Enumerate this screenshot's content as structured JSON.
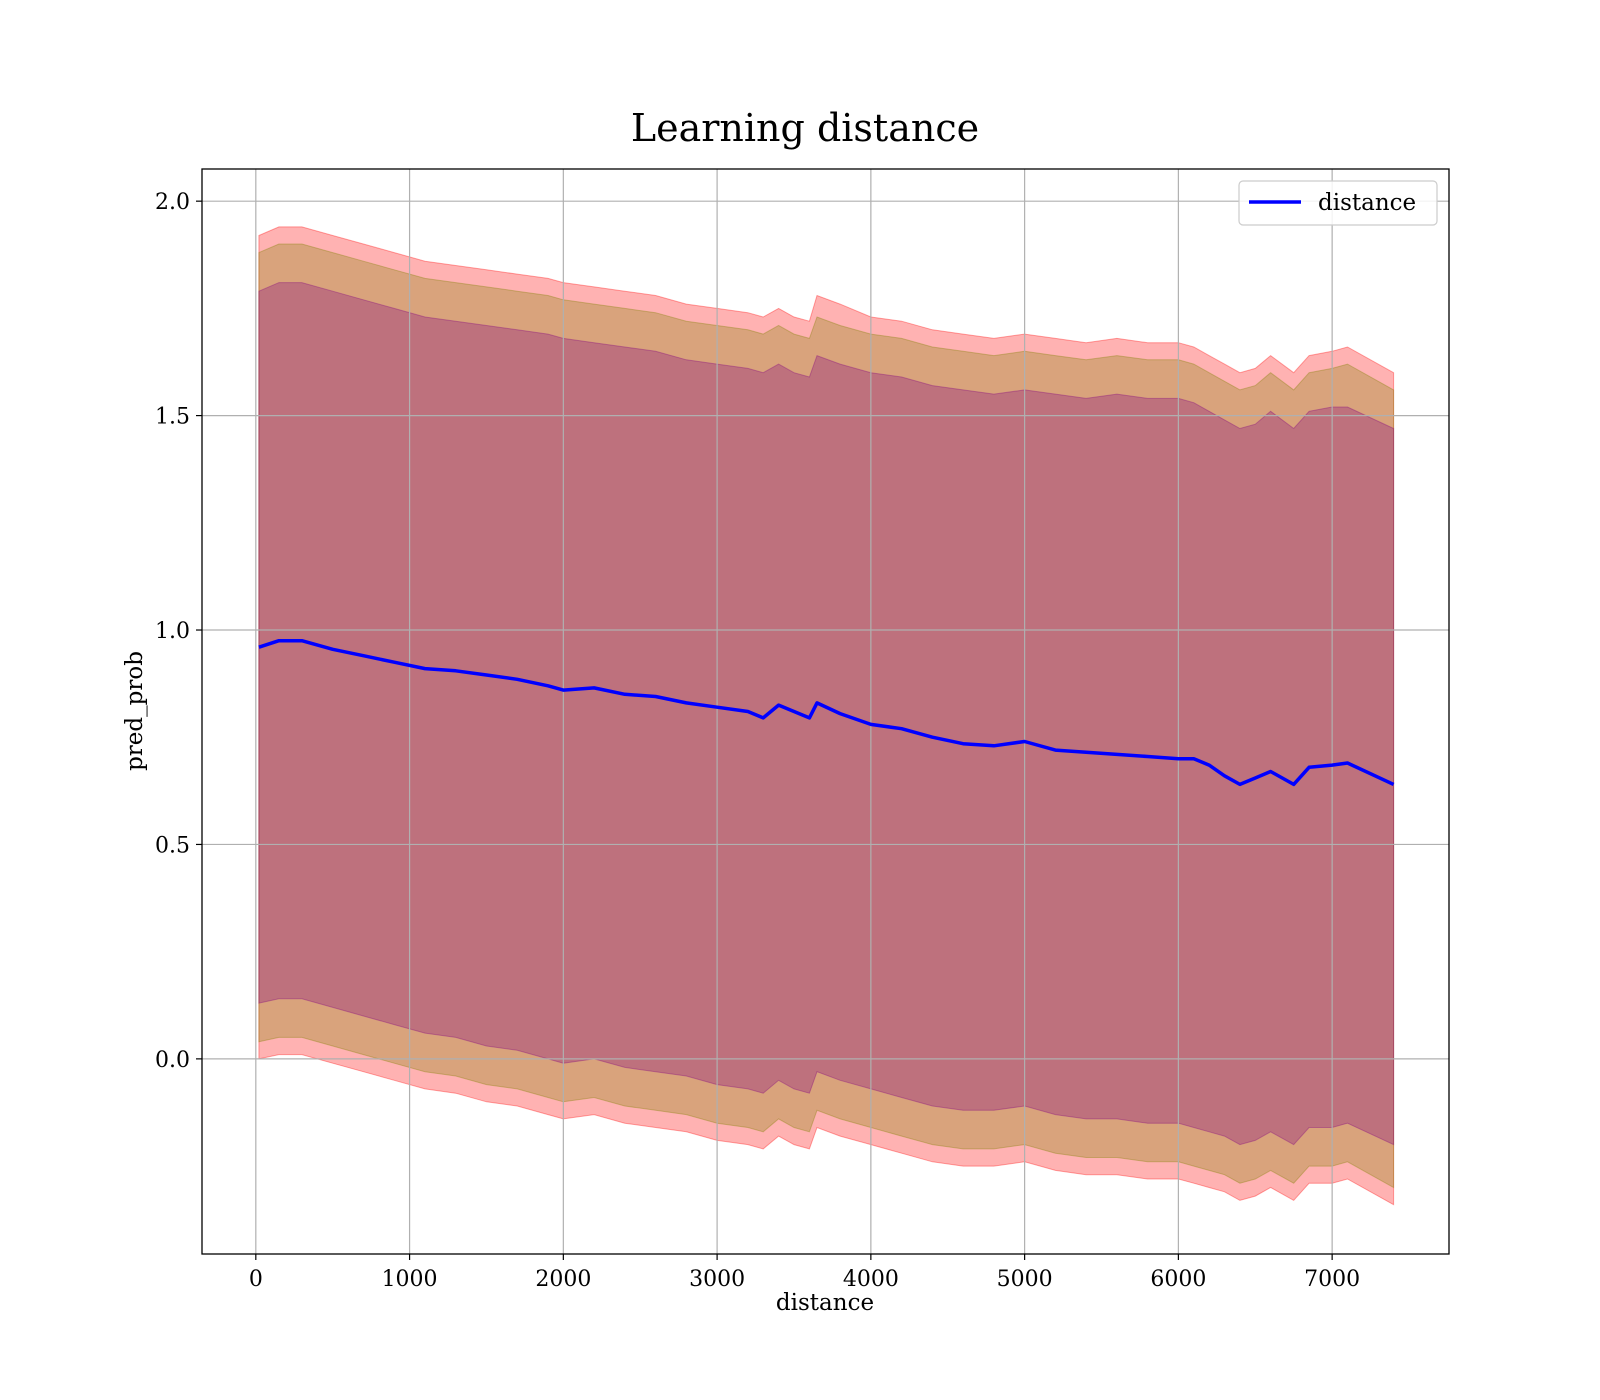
{
  "chart_data": {
    "type": "area",
    "title": "Learning distance",
    "xlabel": "distance",
    "ylabel": "pred_prob",
    "xlim": [
      -350,
      7760
    ],
    "ylim": [
      -0.455,
      2.075
    ],
    "x_ticks": [
      0,
      1000,
      2000,
      3000,
      4000,
      5000,
      6000,
      7000
    ],
    "y_ticks": [
      0.0,
      0.5,
      1.0,
      1.5,
      2.0
    ],
    "x_tick_labels": [
      "0",
      "1000",
      "2000",
      "3000",
      "4000",
      "5000",
      "6000",
      "7000"
    ],
    "y_tick_labels": [
      "0.0",
      "0.5",
      "1.0",
      "1.5",
      "2.0"
    ],
    "grid": true,
    "legend_position": "top-right",
    "colors": {
      "line": "#0000ff",
      "band_outer": "#ff0000",
      "band_middle": "#808000",
      "band_inner": "#800080"
    },
    "x": [
      20,
      150,
      300,
      500,
      700,
      900,
      1100,
      1300,
      1500,
      1700,
      1900,
      2000,
      2200,
      2400,
      2600,
      2800,
      3000,
      3200,
      3300,
      3400,
      3500,
      3600,
      3650,
      3800,
      4000,
      4200,
      4400,
      4600,
      4800,
      5000,
      5200,
      5400,
      5600,
      5800,
      6000,
      6100,
      6200,
      6300,
      6400,
      6500,
      6600,
      6750,
      6850,
      7000,
      7100,
      7400
    ],
    "series": [
      {
        "name": "distance",
        "values": [
          0.96,
          0.975,
          0.975,
          0.955,
          0.94,
          0.925,
          0.91,
          0.905,
          0.895,
          0.885,
          0.87,
          0.86,
          0.865,
          0.85,
          0.845,
          0.83,
          0.82,
          0.81,
          0.795,
          0.825,
          0.81,
          0.795,
          0.83,
          0.805,
          0.78,
          0.77,
          0.75,
          0.735,
          0.73,
          0.74,
          0.72,
          0.715,
          0.71,
          0.705,
          0.7,
          0.7,
          0.685,
          0.66,
          0.64,
          0.655,
          0.67,
          0.64,
          0.68,
          0.685,
          0.69,
          0.64
        ]
      }
    ],
    "bands": [
      {
        "upper": [
          1.92,
          1.94,
          1.94,
          1.92,
          1.9,
          1.88,
          1.86,
          1.85,
          1.84,
          1.83,
          1.82,
          1.81,
          1.8,
          1.79,
          1.78,
          1.76,
          1.75,
          1.74,
          1.73,
          1.75,
          1.73,
          1.72,
          1.78,
          1.76,
          1.73,
          1.72,
          1.7,
          1.69,
          1.68,
          1.69,
          1.68,
          1.67,
          1.68,
          1.67,
          1.67,
          1.66,
          1.64,
          1.62,
          1.6,
          1.61,
          1.64,
          1.6,
          1.64,
          1.65,
          1.66,
          1.6
        ],
        "lower": [
          0.0,
          0.01,
          0.01,
          -0.01,
          -0.03,
          -0.05,
          -0.07,
          -0.08,
          -0.1,
          -0.11,
          -0.13,
          -0.14,
          -0.13,
          -0.15,
          -0.16,
          -0.17,
          -0.19,
          -0.2,
          -0.21,
          -0.18,
          -0.2,
          -0.21,
          -0.16,
          -0.18,
          -0.2,
          -0.22,
          -0.24,
          -0.25,
          -0.25,
          -0.24,
          -0.26,
          -0.27,
          -0.27,
          -0.28,
          -0.28,
          -0.29,
          -0.3,
          -0.31,
          -0.33,
          -0.32,
          -0.3,
          -0.33,
          -0.29,
          -0.29,
          -0.28,
          -0.34
        ]
      },
      {
        "upper": [
          1.88,
          1.9,
          1.9,
          1.88,
          1.86,
          1.84,
          1.82,
          1.81,
          1.8,
          1.79,
          1.78,
          1.77,
          1.76,
          1.75,
          1.74,
          1.72,
          1.71,
          1.7,
          1.69,
          1.71,
          1.69,
          1.68,
          1.73,
          1.71,
          1.69,
          1.68,
          1.66,
          1.65,
          1.64,
          1.65,
          1.64,
          1.63,
          1.64,
          1.63,
          1.63,
          1.62,
          1.6,
          1.58,
          1.56,
          1.57,
          1.6,
          1.56,
          1.6,
          1.61,
          1.62,
          1.56
        ],
        "lower": [
          0.04,
          0.05,
          0.05,
          0.03,
          0.01,
          -0.01,
          -0.03,
          -0.04,
          -0.06,
          -0.07,
          -0.09,
          -0.1,
          -0.09,
          -0.11,
          -0.12,
          -0.13,
          -0.15,
          -0.16,
          -0.17,
          -0.14,
          -0.16,
          -0.17,
          -0.12,
          -0.14,
          -0.16,
          -0.18,
          -0.2,
          -0.21,
          -0.21,
          -0.2,
          -0.22,
          -0.23,
          -0.23,
          -0.24,
          -0.24,
          -0.25,
          -0.26,
          -0.27,
          -0.29,
          -0.28,
          -0.26,
          -0.29,
          -0.25,
          -0.25,
          -0.24,
          -0.3
        ]
      },
      {
        "upper": [
          1.79,
          1.81,
          1.81,
          1.79,
          1.77,
          1.75,
          1.73,
          1.72,
          1.71,
          1.7,
          1.69,
          1.68,
          1.67,
          1.66,
          1.65,
          1.63,
          1.62,
          1.61,
          1.6,
          1.62,
          1.6,
          1.59,
          1.64,
          1.62,
          1.6,
          1.59,
          1.57,
          1.56,
          1.55,
          1.56,
          1.55,
          1.54,
          1.55,
          1.54,
          1.54,
          1.53,
          1.51,
          1.49,
          1.47,
          1.48,
          1.51,
          1.47,
          1.51,
          1.52,
          1.52,
          1.47
        ],
        "lower": [
          0.13,
          0.14,
          0.14,
          0.12,
          0.1,
          0.08,
          0.06,
          0.05,
          0.03,
          0.02,
          0.0,
          -0.01,
          0.0,
          -0.02,
          -0.03,
          -0.04,
          -0.06,
          -0.07,
          -0.08,
          -0.05,
          -0.07,
          -0.08,
          -0.03,
          -0.05,
          -0.07,
          -0.09,
          -0.11,
          -0.12,
          -0.12,
          -0.11,
          -0.13,
          -0.14,
          -0.14,
          -0.15,
          -0.15,
          -0.16,
          -0.17,
          -0.18,
          -0.2,
          -0.19,
          -0.17,
          -0.2,
          -0.16,
          -0.16,
          -0.15,
          -0.2
        ]
      }
    ]
  }
}
